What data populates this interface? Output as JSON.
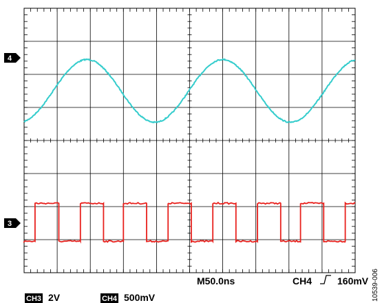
{
  "chart_data": {
    "type": "line",
    "time_per_div": "M50.0ns",
    "trigger": {
      "channel": "CH4",
      "level": "160mV"
    },
    "channels": [
      {
        "tag": "CH3",
        "scale": "2V"
      },
      {
        "tag": "CH4",
        "scale": "500mV"
      }
    ],
    "markers": [
      {
        "text": "4",
        "div_y": 1.5
      },
      {
        "text": "3",
        "div_y": 6.5
      }
    ],
    "figure_id": "10539-006",
    "grid": {
      "x_divisions": 10,
      "y_divisions": 8
    },
    "series": [
      {
        "channel": "CH4",
        "color": "#33cccc",
        "waveform": "sine",
        "period_div": 4.1,
        "x_peak_div": 1.9,
        "y_center_div": 2.5,
        "y_amplitude_div": 0.95
      },
      {
        "channel": "CH3",
        "color": "#e8201c",
        "waveform": "square",
        "x_rising_edges_div": [
          0.33,
          1.7,
          3.0,
          4.35,
          5.7,
          7.05,
          8.35,
          9.7
        ],
        "x_falling_edges_div": [
          1.05,
          2.4,
          3.7,
          5.05,
          6.4,
          7.75,
          9.05
        ],
        "y_high_div": 5.9,
        "y_low_div": 7.05
      }
    ]
  }
}
